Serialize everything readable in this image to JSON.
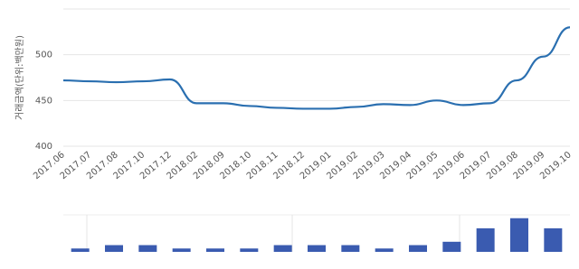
{
  "chart_data": [
    {
      "type": "line",
      "y_label": "거래금액(단위:백만원)",
      "categories": [
        "2017.06",
        "2017.07",
        "2017.08",
        "2017.10",
        "2017.12",
        "2018.02",
        "2018.09",
        "2018.10",
        "2018.11",
        "2018.12",
        "2019.01",
        "2019.02",
        "2019.03",
        "2019.04",
        "2019.05",
        "2019.06",
        "2019.07",
        "2019.08",
        "2019.09",
        "2019.10"
      ],
      "values": [
        472,
        471,
        470,
        471,
        473,
        447,
        447,
        444,
        442,
        441,
        441,
        443,
        446,
        445,
        450,
        445,
        447,
        472,
        498,
        530
      ],
      "color": "#2a6fb0",
      "ylim": [
        400,
        550
      ],
      "yticks": [
        400,
        450,
        500
      ],
      "grid": true
    },
    {
      "type": "bar",
      "categories": [
        null,
        null,
        null,
        null,
        null,
        null,
        null,
        null,
        null,
        null,
        null,
        null,
        null,
        null,
        null
      ],
      "values": [
        1,
        2,
        2,
        1,
        1,
        1,
        2,
        2,
        2,
        1,
        2,
        3,
        7,
        10,
        7
      ],
      "color": "#3a5bb0",
      "ylim": [
        0,
        11
      ]
    }
  ]
}
